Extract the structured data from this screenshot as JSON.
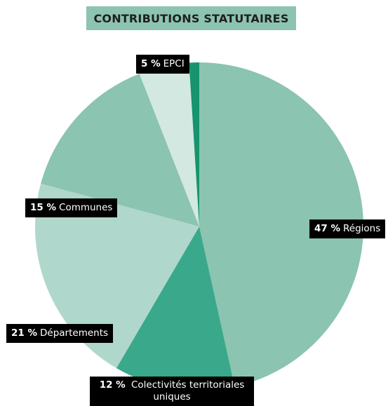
{
  "chart_data": {
    "type": "pie",
    "title": "CONTRIBUTIONS STATUTAIRES",
    "slices": [
      {
        "label": "Régions",
        "pct_label": "47 %",
        "value": 47,
        "color": "#8bc4b0"
      },
      {
        "label": "Colectivités territoriales uniques",
        "pct_label": "12 %",
        "value": 12,
        "color": "#3aa88b"
      },
      {
        "label": "Départements",
        "pct_label": "21  %",
        "value": 21,
        "color": "#b0d7cb"
      },
      {
        "label": "Communes",
        "pct_label": "15 %",
        "value": 15,
        "color": "#8bc4b0"
      },
      {
        "label": "EPCI",
        "pct_label": "5 %",
        "value": 5,
        "color": "#d3e8e1"
      },
      {
        "label": "",
        "pct_label": "",
        "value": 1,
        "color": "#17946d"
      }
    ],
    "start_angle_deg": 0,
    "direction": "clockwise"
  }
}
